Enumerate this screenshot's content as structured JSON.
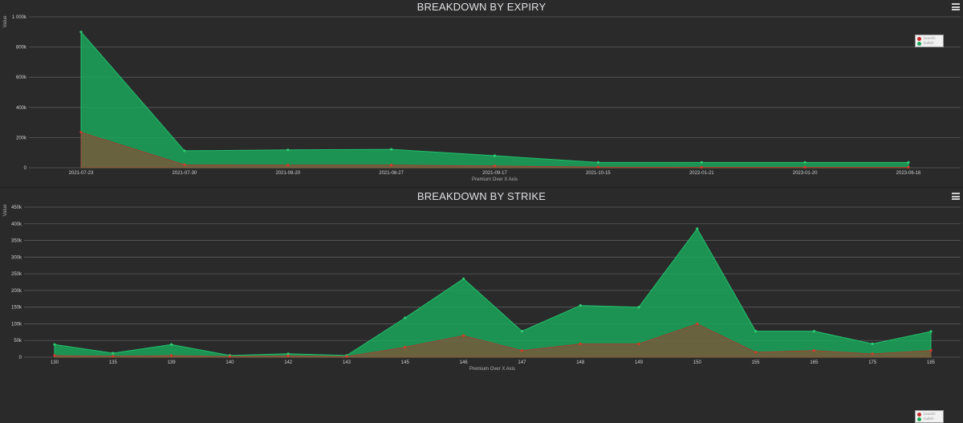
{
  "colors": {
    "background": "#2a2a2b",
    "bullish": "#1aa65b",
    "bearish": "#c62828",
    "grid": "#5a5a5c"
  },
  "icons": {
    "menu": "hamburger-menu-icon"
  },
  "legend": {
    "bearish": "bearish",
    "bullish": "bullish"
  },
  "chart_data": [
    {
      "type": "area",
      "title": "BREAKDOWN BY EXPIRY",
      "xlabel": "Premium Over X Axis",
      "ylabel": "Value",
      "categories": [
        "2021-07-23",
        "2021-07-30",
        "2021-08-20",
        "2021-08-27",
        "2021-09-17",
        "2021-10-15",
        "2022-01-21",
        "2023-01-20",
        "2023-06-16"
      ],
      "yticks": [
        "0",
        "200k",
        "400k",
        "600k",
        "800k",
        "1 000k"
      ],
      "ylim": [
        0,
        1000000
      ],
      "grid": true,
      "legend_position": "top-right",
      "series": [
        {
          "name": "bearish",
          "color": "#c62828",
          "values": [
            235000,
            20000,
            18000,
            18000,
            12000,
            5000,
            3000,
            3000,
            3000
          ]
        },
        {
          "name": "bullish",
          "color": "#1aa65b",
          "values": [
            900000,
            112000,
            118000,
            122000,
            80000,
            35000,
            35000,
            35000,
            35000
          ]
        }
      ]
    },
    {
      "type": "area",
      "title": "BREAKDOWN BY STRIKE",
      "xlabel": "Premium Over X Axis",
      "ylabel": "Value",
      "categories": [
        "130",
        "135",
        "139",
        "140",
        "142",
        "143",
        "145",
        "146",
        "147",
        "148",
        "149",
        "150",
        "155",
        "165",
        "175",
        "185"
      ],
      "yticks": [
        "0",
        "50k",
        "100k",
        "150k",
        "200k",
        "250k",
        "300k",
        "350k",
        "400k",
        "450k"
      ],
      "ylim": [
        0,
        450000
      ],
      "grid": true,
      "legend_position": "top-right",
      "series": [
        {
          "name": "bearish",
          "color": "#c62828",
          "values": [
            5000,
            3000,
            5000,
            2000,
            4000,
            2000,
            30000,
            65000,
            20000,
            40000,
            40000,
            100000,
            15000,
            20000,
            10000,
            20000
          ]
        },
        {
          "name": "bullish",
          "color": "#1aa65b",
          "values": [
            38000,
            12000,
            38000,
            5000,
            10000,
            5000,
            118000,
            235000,
            78000,
            155000,
            150000,
            385000,
            78000,
            78000,
            40000,
            77000
          ]
        }
      ]
    }
  ]
}
